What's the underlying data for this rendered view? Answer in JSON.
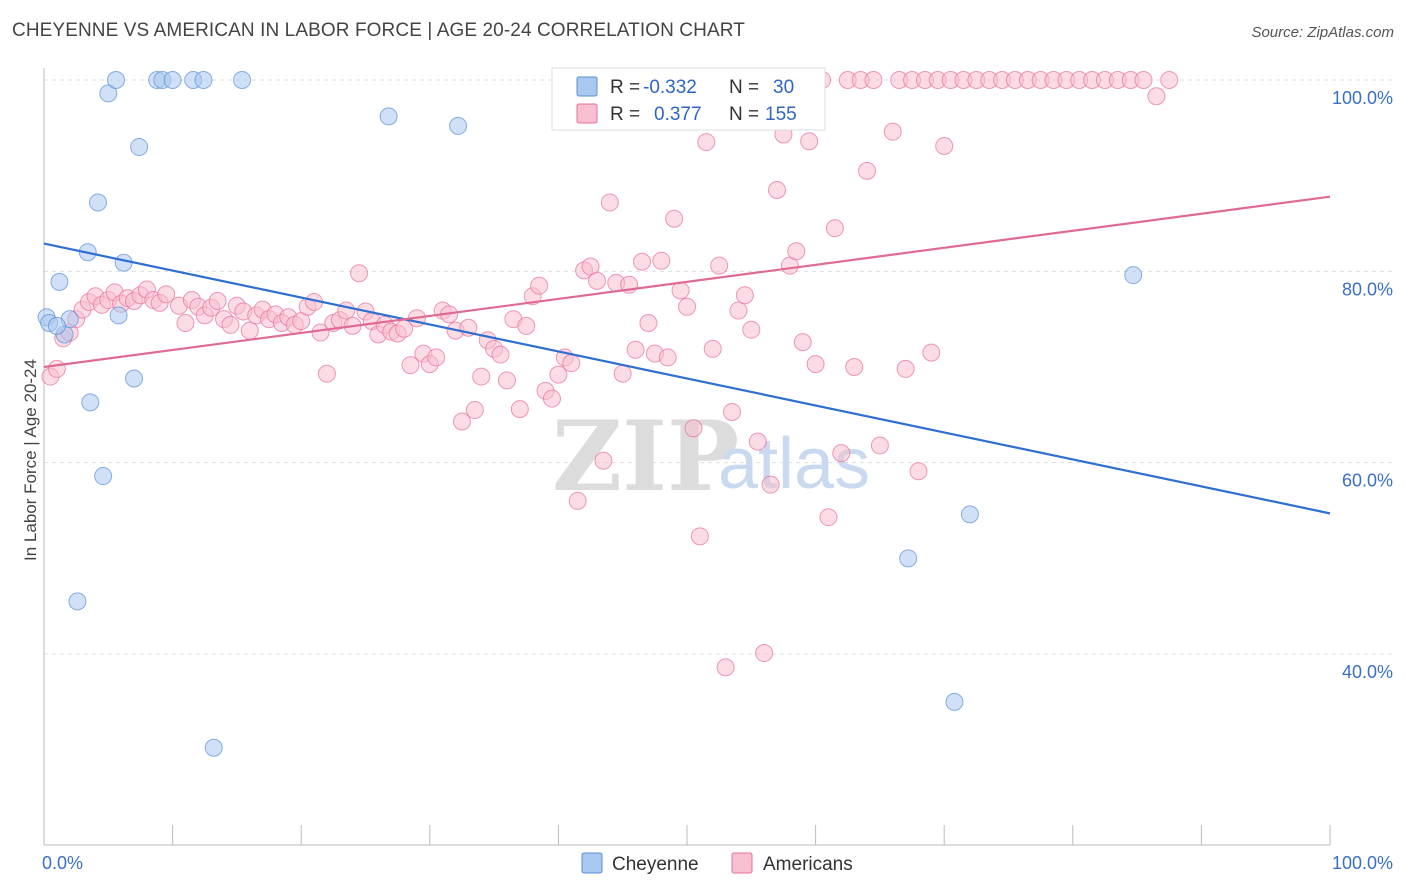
{
  "title": "CHEYENNE VS AMERICAN IN LABOR FORCE | AGE 20-24 CORRELATION CHART",
  "source": "Source: ZipAtlas.com",
  "watermark": {
    "zip": "ZIP",
    "atlas": "atlas"
  },
  "colors": {
    "cheyenne": "#5b8fd6",
    "cheyenne_fill": "#a9c8f0",
    "americans": "#e86f9a",
    "americans_fill": "#f7bfd0",
    "tick": "#3a6fc4"
  },
  "legend": {
    "rows": [
      {
        "r_label": "R =",
        "r_value": "-0.332",
        "n_label": "N =",
        "n_value": "30"
      },
      {
        "r_label": "R =",
        "r_value": "0.377",
        "n_label": "N =",
        "n_value": "155"
      }
    ],
    "bottom": [
      "Cheyenne",
      "Americans"
    ]
  },
  "chart_data": {
    "type": "scatter",
    "title": "CHEYENNE VS AMERICAN IN LABOR FORCE | AGE 20-24 CORRELATION CHART",
    "xlabel": "",
    "ylabel": "In Labor Force | Age 20-24",
    "xlim": [
      0,
      100
    ],
    "ylim": [
      20,
      100
    ],
    "x_tick_labels": [
      "0.0%",
      "100.0%"
    ],
    "y_tick_labels": [
      "40.0%",
      "60.0%",
      "80.0%",
      "100.0%"
    ],
    "y_ticks": [
      40,
      60,
      80,
      100
    ],
    "grid": true,
    "legend_position": "top-center",
    "series": [
      {
        "name": "Cheyenne",
        "color": "#5b8fd6",
        "r": -0.332,
        "n": 30,
        "trend": {
          "x": [
            0,
            100
          ],
          "y": [
            82.9,
            54.7
          ]
        },
        "points": [
          [
            0.2,
            75.2
          ],
          [
            0.4,
            74.6
          ],
          [
            1.2,
            78.9
          ],
          [
            1.6,
            73.4
          ],
          [
            2.0,
            75.0
          ],
          [
            2.6,
            45.5
          ],
          [
            3.4,
            82.0
          ],
          [
            3.6,
            66.3
          ],
          [
            4.2,
            87.2
          ],
          [
            4.6,
            58.6
          ],
          [
            5.0,
            98.6
          ],
          [
            5.6,
            100
          ],
          [
            5.8,
            75.4
          ],
          [
            6.2,
            80.9
          ],
          [
            7.0,
            68.8
          ],
          [
            7.4,
            93.0
          ],
          [
            8.8,
            100
          ],
          [
            9.2,
            100
          ],
          [
            10.0,
            100
          ],
          [
            11.6,
            100
          ],
          [
            12.4,
            100
          ],
          [
            13.2,
            30.2
          ],
          [
            15.4,
            100
          ],
          [
            26.8,
            96.2
          ],
          [
            32.2,
            95.2
          ],
          [
            67.2,
            50.0
          ],
          [
            70.8,
            35.0
          ],
          [
            72.0,
            54.6
          ],
          [
            84.7,
            79.6
          ],
          [
            1.0,
            74.3
          ]
        ]
      },
      {
        "name": "Americans",
        "color": "#e86f9a",
        "r": 0.377,
        "n": 155,
        "trend": {
          "x": [
            0,
            100
          ],
          "y": [
            70.0,
            87.8
          ]
        },
        "points": [
          [
            0.5,
            69.0
          ],
          [
            1.0,
            69.8
          ],
          [
            1.5,
            73.0
          ],
          [
            2.0,
            73.6
          ],
          [
            2.5,
            75.0
          ],
          [
            3.0,
            76.0
          ],
          [
            3.5,
            76.8
          ],
          [
            4.0,
            77.4
          ],
          [
            4.5,
            76.5
          ],
          [
            5.0,
            77.0
          ],
          [
            5.5,
            77.8
          ],
          [
            6.0,
            76.6
          ],
          [
            6.5,
            77.2
          ],
          [
            7.0,
            76.9
          ],
          [
            7.5,
            77.5
          ],
          [
            8.0,
            78.1
          ],
          [
            8.5,
            77.0
          ],
          [
            9.0,
            76.7
          ],
          [
            9.5,
            77.6
          ],
          [
            10.5,
            76.4
          ],
          [
            11.0,
            74.6
          ],
          [
            11.5,
            77.0
          ],
          [
            12.0,
            76.3
          ],
          [
            12.5,
            75.4
          ],
          [
            13.0,
            76.2
          ],
          [
            13.5,
            76.9
          ],
          [
            14.0,
            75.0
          ],
          [
            14.5,
            74.4
          ],
          [
            15.0,
            76.4
          ],
          [
            15.5,
            75.8
          ],
          [
            16.0,
            73.8
          ],
          [
            16.5,
            75.4
          ],
          [
            17.0,
            76.0
          ],
          [
            17.5,
            75.0
          ],
          [
            18.0,
            75.5
          ],
          [
            18.5,
            74.6
          ],
          [
            19.0,
            75.2
          ],
          [
            19.5,
            74.4
          ],
          [
            20.0,
            74.8
          ],
          [
            20.5,
            76.3
          ],
          [
            21.0,
            76.8
          ],
          [
            21.5,
            73.6
          ],
          [
            22.0,
            69.3
          ],
          [
            22.5,
            74.6
          ],
          [
            23.0,
            74.9
          ],
          [
            23.5,
            75.9
          ],
          [
            24.0,
            74.3
          ],
          [
            24.5,
            79.8
          ],
          [
            25.0,
            75.8
          ],
          [
            25.5,
            74.8
          ],
          [
            26.0,
            73.4
          ],
          [
            26.5,
            74.4
          ],
          [
            27.0,
            73.7
          ],
          [
            27.5,
            73.5
          ],
          [
            28.0,
            74.0
          ],
          [
            28.5,
            70.2
          ],
          [
            29.0,
            75.1
          ],
          [
            29.5,
            71.4
          ],
          [
            30.0,
            70.3
          ],
          [
            30.5,
            71.0
          ],
          [
            31.0,
            75.9
          ],
          [
            31.5,
            75.5
          ],
          [
            32.0,
            73.8
          ],
          [
            32.5,
            64.3
          ],
          [
            33.0,
            74.1
          ],
          [
            33.5,
            65.5
          ],
          [
            34.0,
            69.0
          ],
          [
            34.5,
            72.8
          ],
          [
            35.0,
            71.9
          ],
          [
            35.5,
            71.3
          ],
          [
            36.0,
            68.6
          ],
          [
            36.5,
            75.0
          ],
          [
            37.0,
            65.6
          ],
          [
            37.5,
            74.3
          ],
          [
            38.0,
            77.4
          ],
          [
            38.5,
            78.5
          ],
          [
            39.0,
            67.5
          ],
          [
            39.5,
            66.7
          ],
          [
            40.0,
            69.2
          ],
          [
            40.5,
            71.0
          ],
          [
            41.0,
            70.4
          ],
          [
            41.5,
            56.0
          ],
          [
            42.0,
            80.1
          ],
          [
            42.5,
            80.5
          ],
          [
            43.0,
            79.0
          ],
          [
            43.5,
            60.2
          ],
          [
            44.0,
            87.2
          ],
          [
            44.5,
            78.8
          ],
          [
            45.0,
            69.3
          ],
          [
            45.5,
            78.6
          ],
          [
            46.0,
            71.8
          ],
          [
            46.5,
            81.0
          ],
          [
            47.0,
            74.6
          ],
          [
            47.5,
            71.4
          ],
          [
            48.0,
            81.1
          ],
          [
            48.5,
            71.0
          ],
          [
            49.0,
            85.5
          ],
          [
            49.5,
            78.0
          ],
          [
            50.0,
            76.3
          ],
          [
            50.5,
            63.6
          ],
          [
            51.0,
            52.3
          ],
          [
            51.5,
            93.5
          ],
          [
            52.0,
            71.9
          ],
          [
            52.5,
            80.6
          ],
          [
            53.0,
            38.6
          ],
          [
            53.5,
            65.3
          ],
          [
            54.0,
            75.9
          ],
          [
            54.5,
            77.5
          ],
          [
            55.0,
            73.9
          ],
          [
            55.5,
            62.2
          ],
          [
            56.0,
            40.1
          ],
          [
            56.5,
            57.7
          ],
          [
            57.0,
            88.5
          ],
          [
            57.5,
            94.3
          ],
          [
            58.0,
            80.6
          ],
          [
            58.5,
            82.1
          ],
          [
            59.0,
            72.6
          ],
          [
            59.5,
            93.6
          ],
          [
            60.0,
            70.3
          ],
          [
            61.0,
            54.3
          ],
          [
            61.5,
            84.5
          ],
          [
            62.0,
            61.0
          ],
          [
            63.0,
            70.0
          ],
          [
            64.0,
            90.5
          ],
          [
            65.0,
            61.8
          ],
          [
            66.0,
            94.6
          ],
          [
            67.0,
            69.8
          ],
          [
            68.0,
            59.1
          ],
          [
            69.0,
            71.5
          ],
          [
            70.0,
            93.1
          ],
          [
            60.5,
            100
          ],
          [
            62.5,
            100
          ],
          [
            63.5,
            100
          ],
          [
            64.5,
            100
          ],
          [
            66.5,
            100
          ],
          [
            67.5,
            100
          ],
          [
            68.5,
            100
          ],
          [
            69.5,
            100
          ],
          [
            70.5,
            100
          ],
          [
            71.5,
            100
          ],
          [
            72.5,
            100
          ],
          [
            73.5,
            100
          ],
          [
            74.5,
            100
          ],
          [
            75.5,
            100
          ],
          [
            76.5,
            100
          ],
          [
            77.5,
            100
          ],
          [
            78.5,
            100
          ],
          [
            79.5,
            100
          ],
          [
            80.5,
            100
          ],
          [
            81.5,
            100
          ],
          [
            82.5,
            100
          ],
          [
            83.5,
            100
          ],
          [
            84.5,
            100
          ],
          [
            85.5,
            100
          ],
          [
            86.5,
            98.3
          ],
          [
            87.5,
            100
          ]
        ]
      }
    ]
  }
}
